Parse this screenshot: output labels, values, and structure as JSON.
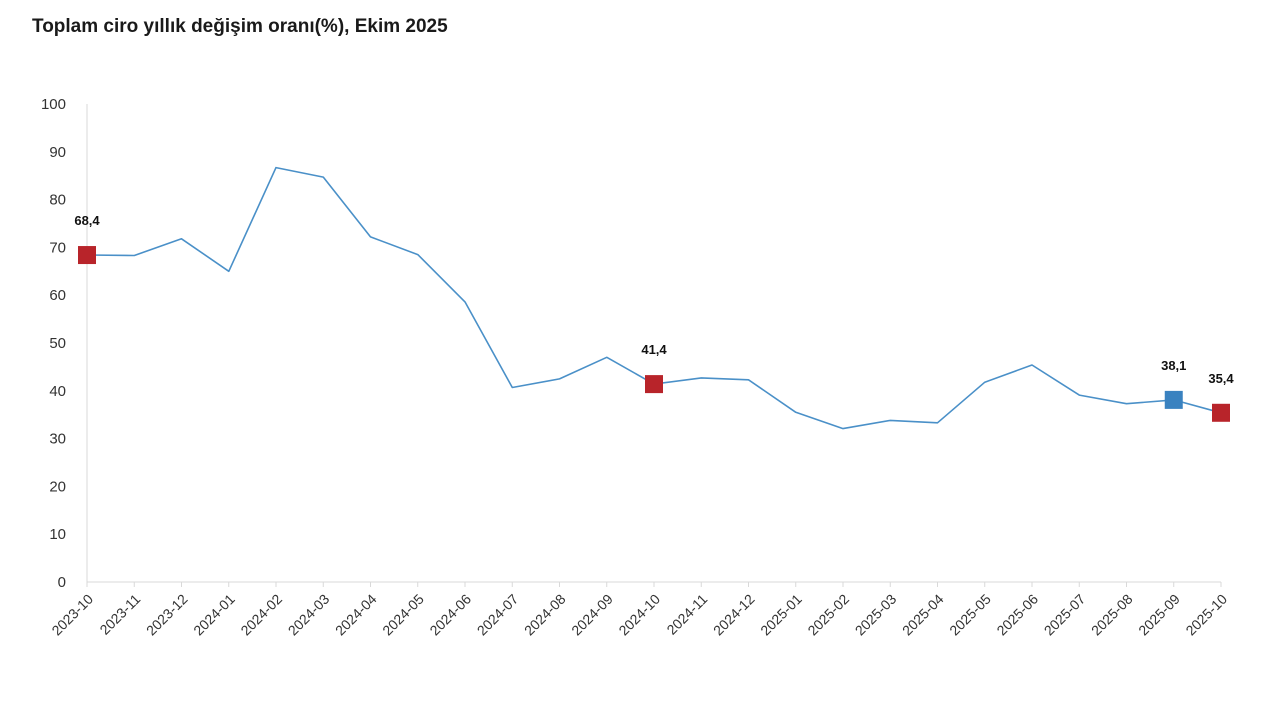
{
  "chart_data": {
    "type": "line",
    "title": "Toplam ciro yıllık değişim oranı(%), Ekim 2025",
    "xlabel": "",
    "ylabel": "",
    "ylim": [
      0,
      100
    ],
    "yticks": [
      "0",
      "10",
      "20",
      "30",
      "40",
      "50",
      "60",
      "70",
      "80",
      "90",
      "100"
    ],
    "grid": false,
    "categories": [
      "2023-10",
      "2023-11",
      "2023-12",
      "2024-01",
      "2024-02",
      "2024-03",
      "2024-04",
      "2024-05",
      "2024-06",
      "2024-07",
      "2024-08",
      "2024-09",
      "2024-10",
      "2024-11",
      "2024-12",
      "2025-01",
      "2025-02",
      "2025-03",
      "2025-04",
      "2025-05",
      "2025-06",
      "2025-07",
      "2025-08",
      "2025-09",
      "2025-10"
    ],
    "series": [
      {
        "values": [
          68.4,
          68.3,
          71.8,
          65.0,
          86.7,
          84.7,
          72.2,
          68.5,
          58.6,
          40.7,
          42.5,
          47.0,
          41.4,
          42.7,
          42.3,
          35.5,
          32.1,
          33.8,
          33.3,
          41.8,
          45.4,
          39.1,
          37.3,
          38.1,
          35.4
        ],
        "color": "#4a90c8"
      }
    ],
    "highlighted_points": [
      {
        "index": 0,
        "label": "68,4",
        "color": "#b8242a"
      },
      {
        "index": 12,
        "label": "41,4",
        "color": "#b8242a"
      },
      {
        "index": 23,
        "label": "38,1",
        "color": "#3a82c0"
      },
      {
        "index": 24,
        "label": "35,4",
        "color": "#b8242a"
      }
    ]
  }
}
